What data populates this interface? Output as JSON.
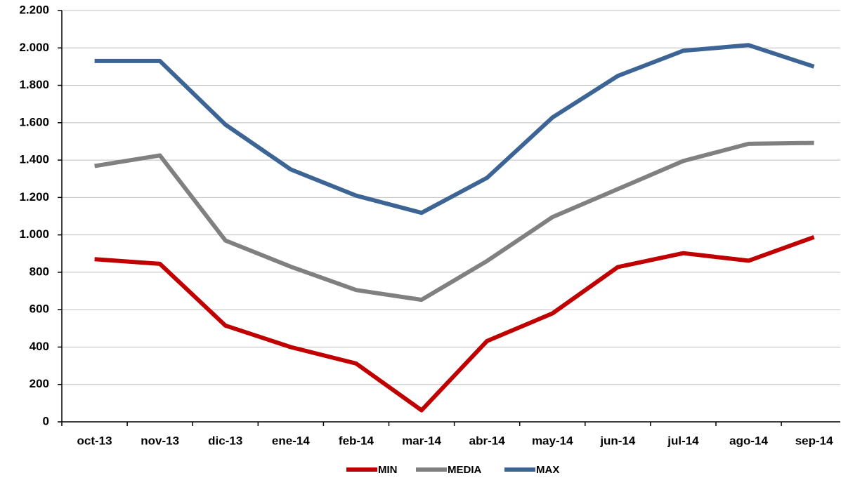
{
  "chart_data": {
    "type": "line",
    "categories": [
      "oct-13",
      "nov-13",
      "dic-13",
      "ene-14",
      "feb-14",
      "mar-14",
      "abr-14",
      "may-14",
      "jun-14",
      "jul-14",
      "ago-14",
      "sep-14"
    ],
    "series": [
      {
        "name": "MIN",
        "color": "#c00000",
        "values": [
          870,
          845,
          515,
          400,
          312,
          62,
          432,
          580,
          828,
          902,
          862,
          988
        ]
      },
      {
        "name": "MEDIA",
        "color": "#808080",
        "values": [
          1368,
          1425,
          970,
          830,
          705,
          653,
          860,
          1095,
          1245,
          1395,
          1487,
          1492
        ]
      },
      {
        "name": "MAX",
        "color": "#3c6596",
        "values": [
          1930,
          1930,
          1590,
          1350,
          1210,
          1118,
          1305,
          1628,
          1850,
          1985,
          2015,
          1900
        ]
      }
    ],
    "ylim": [
      0,
      2200
    ],
    "yticks": [
      0,
      200,
      400,
      600,
      800,
      {
        "value": 1000,
        "label": "1.000"
      },
      {
        "value": 1200,
        "label": "1.200"
      },
      {
        "value": 1400,
        "label": "1.400"
      },
      {
        "value": 1600,
        "label": "1.600"
      },
      {
        "value": 1800,
        "label": "1.800"
      },
      {
        "value": 2000,
        "label": "2.000"
      },
      {
        "value": 2200,
        "label": "2.200"
      }
    ],
    "grid": true,
    "legend": "bottom"
  }
}
